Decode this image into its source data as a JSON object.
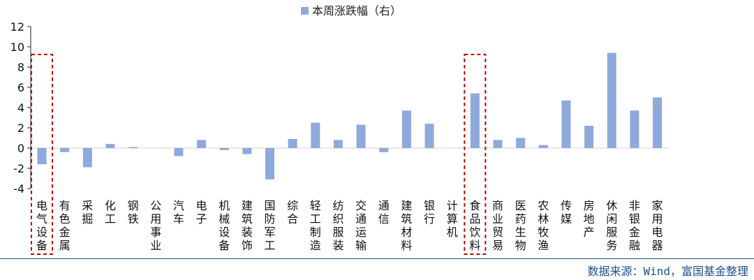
{
  "chart_data": {
    "type": "bar",
    "title": "",
    "xlabel": "",
    "ylabel": "",
    "ylim": [
      -4,
      12
    ],
    "yticks": [
      -4,
      -2,
      0,
      2,
      4,
      6,
      8,
      10,
      12
    ],
    "grid": false,
    "legend_position": "top-center",
    "bar_color": "#8ea9db",
    "highlight_color": "#c00000",
    "series": [
      {
        "name": "本周涨跌幅（右）",
        "values": [
          -1.6,
          -0.4,
          -1.9,
          0.4,
          0.1,
          0.0,
          -0.8,
          0.8,
          -0.2,
          -0.6,
          -3.1,
          0.9,
          2.5,
          0.8,
          2.3,
          -0.4,
          3.7,
          2.4,
          0.0,
          5.4,
          0.8,
          1.0,
          0.3,
          4.7,
          2.2,
          9.4,
          3.7,
          5.0
        ]
      }
    ],
    "categories": [
      "电气设备",
      "有色金属",
      "采掘",
      "化工",
      "钢铁",
      "公用事业",
      "汽车",
      "电子",
      "机械设备",
      "建筑装饰",
      "国防军工",
      "综合",
      "轻工制造",
      "纺织服装",
      "交通运输",
      "通信",
      "建筑材料",
      "银行",
      "计算机",
      "食品饮料",
      "商业贸易",
      "医药生物",
      "农林牧渔",
      "传媒",
      "房地产",
      "休闲服务",
      "非银金融",
      "家用电器"
    ],
    "highlighted_categories": [
      "电气设备",
      "食品饮料"
    ]
  },
  "source_note": "数据来源：Wind，富国基金整理"
}
